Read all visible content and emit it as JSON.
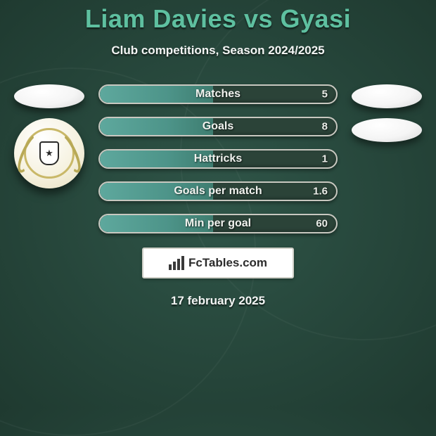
{
  "title": "Liam Davies vs Gyasi",
  "subtitle": "Club competitions, Season 2024/2025",
  "date": "17 february 2025",
  "brand": "FcTables.com",
  "colors": {
    "title": "#5ec0a0",
    "text": "#f3f5f4",
    "bar_border": "#c8c8c0",
    "bar_fill": "#4d9489",
    "bg": "#2b4a3f"
  },
  "stats": [
    {
      "label": "Matches",
      "value": "5",
      "fill_pct": 48
    },
    {
      "label": "Goals",
      "value": "8",
      "fill_pct": 48
    },
    {
      "label": "Hattricks",
      "value": "1",
      "fill_pct": 48
    },
    {
      "label": "Goals per match",
      "value": "1.6",
      "fill_pct": 48
    },
    {
      "label": "Min per goal",
      "value": "60",
      "fill_pct": 48
    }
  ],
  "left_side": {
    "ovals": 1,
    "crest": true
  },
  "right_side": {
    "ovals": 2
  }
}
